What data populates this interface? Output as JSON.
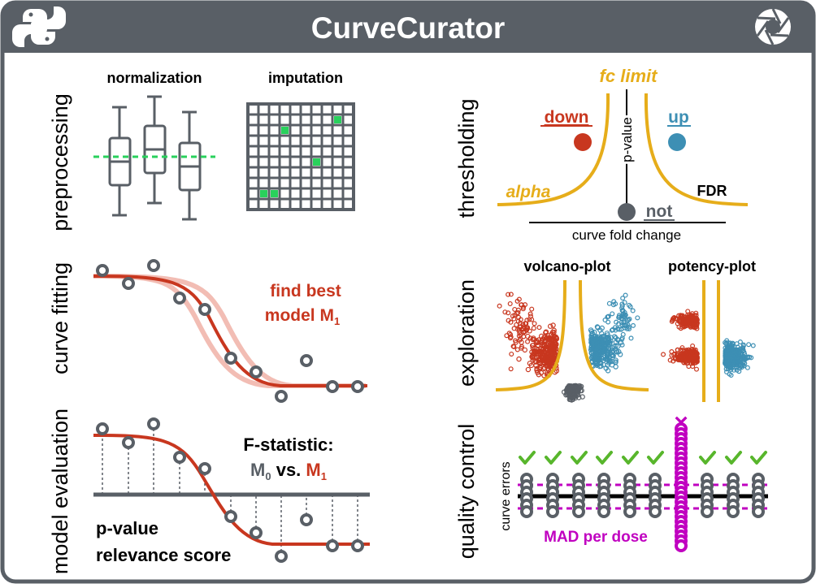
{
  "header": {
    "title": "CurveCurator",
    "left_icon": "python-logo",
    "right_icon": "aperture-logo"
  },
  "colors": {
    "dark": "#595f66",
    "red": "#c8371f",
    "blue": "#3d8fb4",
    "gold": "#e6ad1a",
    "green": "#29d15c",
    "magenta": "#c000c0",
    "check": "#58b62c",
    "light_red": "#f2bdb4"
  },
  "preprocessing": {
    "label": "preprocessing",
    "normalization": "normalization",
    "imputation": "imputation"
  },
  "thresholding": {
    "label": "thresholding",
    "fc_limit": "fc limit",
    "down": "down",
    "up": "up",
    "p_value": "p-value",
    "alpha": "alpha",
    "fdr": "FDR",
    "not": "not",
    "xlabel": "curve fold change"
  },
  "curve_fitting": {
    "label": "curve fitting",
    "line1": "find best",
    "line2": "model M",
    "sub": "1"
  },
  "exploration": {
    "label": "exploration",
    "volcano": "volcano-plot",
    "potency": "potency-plot"
  },
  "model_evaluation": {
    "label": "model evaluation",
    "f_stat": "F-statistic:",
    "m0": "M",
    "m0_sub": "0",
    "vs": " vs. ",
    "m1": "M",
    "m1_sub": "1",
    "pvalue": "p-value",
    "relevance": "relevance score"
  },
  "quality_control": {
    "label": "quality control",
    "curve_errors": "curve errors",
    "mad": "MAD per dose",
    "fail_mark": "×"
  }
}
